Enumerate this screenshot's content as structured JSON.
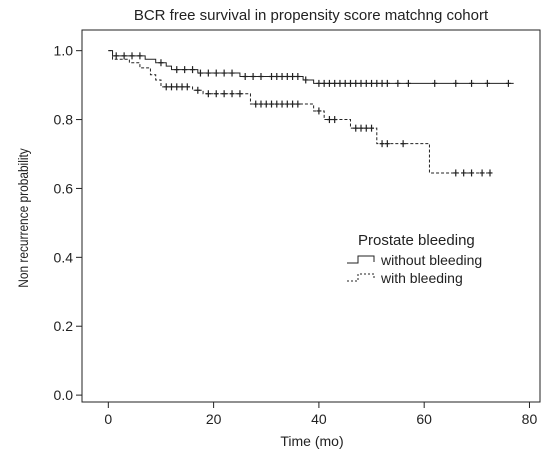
{
  "chart_data": {
    "type": "line",
    "title": "BCR free survival in propensity score matchng cohort",
    "xlabel": "Time (mo)",
    "ylabel": "Non recurrence probability",
    "xlim": [
      -5,
      82
    ],
    "ylim": [
      -0.02,
      1.06
    ],
    "xticks": [
      0,
      20,
      40,
      60,
      80
    ],
    "yticks": [
      0.0,
      0.2,
      0.4,
      0.6,
      0.8,
      1.0
    ],
    "yticks_labels": [
      "0.0",
      "0.2",
      "0.4",
      "0.6",
      "0.8",
      "1.0"
    ],
    "grid": false,
    "legend": {
      "title": "Prostate bleeding",
      "position": "right-middle"
    },
    "series": [
      {
        "name": "without bleeding",
        "style": "solid",
        "color": "#222222",
        "steps": [
          [
            0,
            1.0
          ],
          [
            0.8,
            0.985
          ],
          [
            7,
            0.975
          ],
          [
            9,
            0.965
          ],
          [
            11,
            0.955
          ],
          [
            12,
            0.945
          ],
          [
            17,
            0.935
          ],
          [
            25,
            0.925
          ],
          [
            37,
            0.915
          ],
          [
            39,
            0.905
          ],
          [
            77,
            0.905
          ]
        ],
        "censors": [
          [
            1.5,
            0.985
          ],
          [
            3,
            0.985
          ],
          [
            4.5,
            0.985
          ],
          [
            6,
            0.985
          ],
          [
            10,
            0.965
          ],
          [
            13,
            0.945
          ],
          [
            14.5,
            0.945
          ],
          [
            16,
            0.945
          ],
          [
            17.5,
            0.935
          ],
          [
            19,
            0.935
          ],
          [
            20.5,
            0.935
          ],
          [
            22,
            0.935
          ],
          [
            23.5,
            0.935
          ],
          [
            26,
            0.925
          ],
          [
            27.5,
            0.925
          ],
          [
            29,
            0.925
          ],
          [
            31,
            0.925
          ],
          [
            32,
            0.925
          ],
          [
            33,
            0.925
          ],
          [
            34,
            0.925
          ],
          [
            35,
            0.925
          ],
          [
            36,
            0.925
          ],
          [
            37.5,
            0.915
          ],
          [
            40,
            0.905
          ],
          [
            41,
            0.905
          ],
          [
            42,
            0.905
          ],
          [
            43,
            0.905
          ],
          [
            44,
            0.905
          ],
          [
            45,
            0.905
          ],
          [
            46,
            0.905
          ],
          [
            47,
            0.905
          ],
          [
            48,
            0.905
          ],
          [
            49,
            0.905
          ],
          [
            50,
            0.905
          ],
          [
            51,
            0.905
          ],
          [
            52,
            0.905
          ],
          [
            53,
            0.905
          ],
          [
            55,
            0.905
          ],
          [
            57,
            0.905
          ],
          [
            62,
            0.905
          ],
          [
            66,
            0.905
          ],
          [
            69,
            0.905
          ],
          [
            72,
            0.905
          ],
          [
            76,
            0.905
          ]
        ]
      },
      {
        "name": "with bleeding",
        "style": "dashed",
        "color": "#222222",
        "steps": [
          [
            0,
            1.0
          ],
          [
            0.8,
            0.975
          ],
          [
            4,
            0.965
          ],
          [
            6,
            0.95
          ],
          [
            8,
            0.93
          ],
          [
            9,
            0.915
          ],
          [
            10,
            0.895
          ],
          [
            16,
            0.885
          ],
          [
            18,
            0.875
          ],
          [
            27,
            0.845
          ],
          [
            39,
            0.825
          ],
          [
            41,
            0.8
          ],
          [
            46,
            0.775
          ],
          [
            51,
            0.73
          ],
          [
            61,
            0.645
          ],
          [
            72,
            0.645
          ]
        ],
        "censors": [
          [
            11,
            0.895
          ],
          [
            12,
            0.895
          ],
          [
            13,
            0.895
          ],
          [
            14,
            0.895
          ],
          [
            15,
            0.895
          ],
          [
            17,
            0.885
          ],
          [
            19,
            0.875
          ],
          [
            20.5,
            0.875
          ],
          [
            22,
            0.875
          ],
          [
            23.5,
            0.875
          ],
          [
            25,
            0.875
          ],
          [
            28,
            0.845
          ],
          [
            29,
            0.845
          ],
          [
            30,
            0.845
          ],
          [
            31,
            0.845
          ],
          [
            32,
            0.845
          ],
          [
            33,
            0.845
          ],
          [
            34,
            0.845
          ],
          [
            35,
            0.845
          ],
          [
            36,
            0.845
          ],
          [
            40,
            0.825
          ],
          [
            42,
            0.8
          ],
          [
            43,
            0.8
          ],
          [
            47,
            0.775
          ],
          [
            48,
            0.775
          ],
          [
            49,
            0.775
          ],
          [
            50,
            0.775
          ],
          [
            52,
            0.73
          ],
          [
            53,
            0.73
          ],
          [
            56,
            0.73
          ],
          [
            66,
            0.645
          ],
          [
            67.5,
            0.645
          ],
          [
            69,
            0.645
          ],
          [
            71,
            0.645
          ],
          [
            72.5,
            0.645
          ]
        ]
      }
    ]
  }
}
